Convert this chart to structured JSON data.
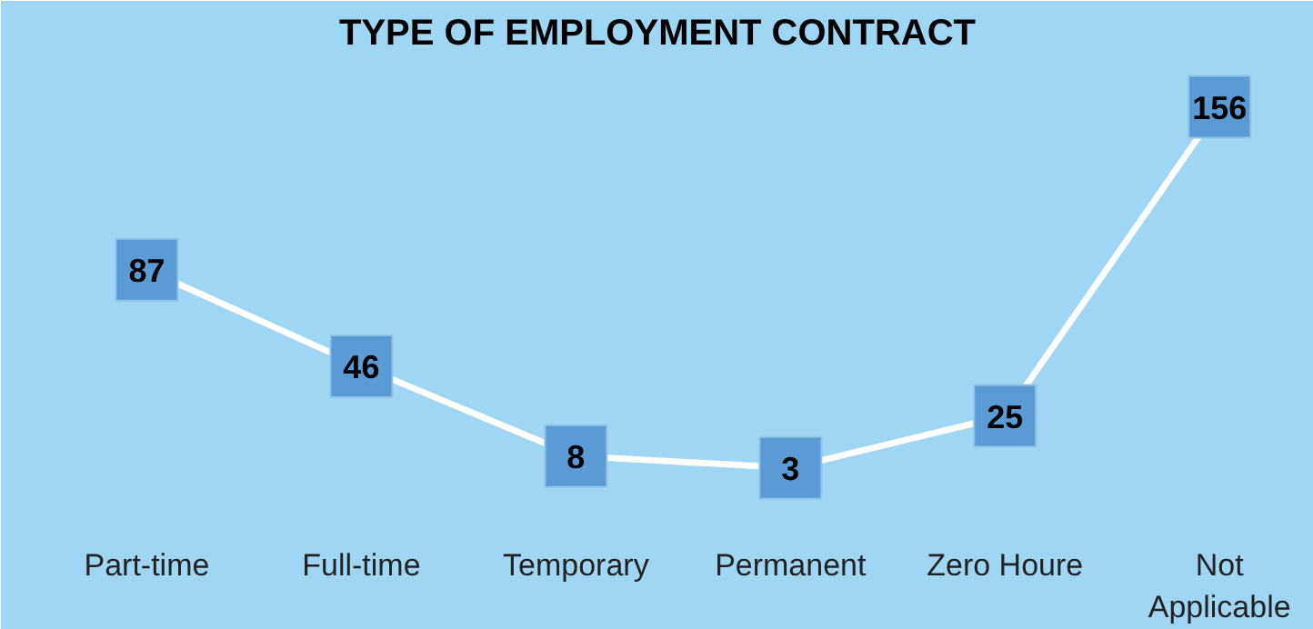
{
  "chart_data": {
    "type": "line",
    "title": "TYPE OF EMPLOYMENT CONTRACT",
    "categories": [
      "Part-time",
      "Full-time",
      "Temporary",
      "Permanent",
      "Zero Houre",
      "Not Applicable"
    ],
    "values": [
      87,
      46,
      8,
      3,
      25,
      156
    ],
    "color": "#ffffff",
    "marker": "square",
    "data_labels": true,
    "grid": false,
    "tick_labels": "x"
  }
}
